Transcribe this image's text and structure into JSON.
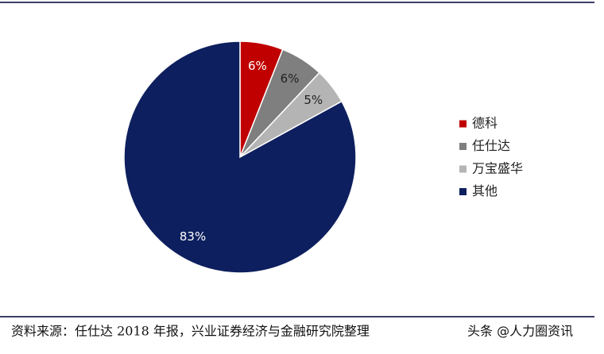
{
  "chart_data": {
    "type": "pie",
    "categories": [
      "德科",
      "任仕达",
      "万宝盛华",
      "其他"
    ],
    "values": [
      6,
      6,
      5,
      83
    ],
    "value_labels": [
      "6%",
      "6%",
      "5%",
      "83%"
    ],
    "colors": [
      "#c00000",
      "#7f7f7f",
      "#b4b4b4",
      "#0d1f5e"
    ],
    "legend": "right"
  },
  "source": "资料来源：任仕达 2018 年报，兴业证券经济与金融研究院整理",
  "watermark": "头条 @人力圈资讯"
}
